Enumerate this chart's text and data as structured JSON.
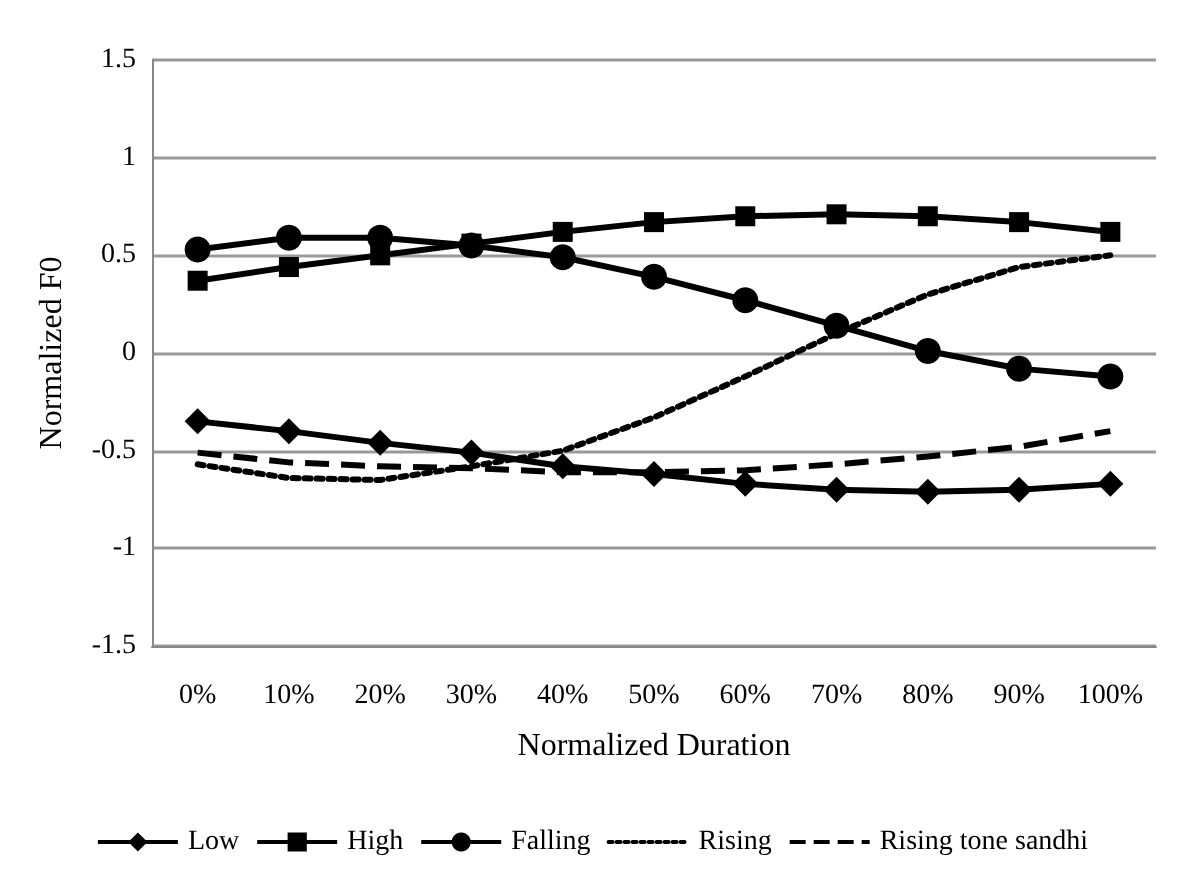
{
  "chart_data": {
    "type": "line",
    "xlabel": "Normalized Duration",
    "ylabel": "Normalized F0",
    "categories": [
      "0%",
      "10%",
      "20%",
      "30%",
      "40%",
      "50%",
      "60%",
      "70%",
      "80%",
      "90%",
      "100%"
    ],
    "ylim": [
      -1.5,
      1.5
    ],
    "yticks": [
      -1.5,
      -1,
      -0.5,
      0,
      0.5,
      1,
      1.5
    ],
    "grid": "y",
    "legend": "bottom",
    "series": [
      {
        "name": "Low",
        "color": "#000000",
        "marker": "diamond",
        "line_style": "solid",
        "values": [
          -0.35,
          -0.4,
          -0.46,
          -0.51,
          -0.58,
          -0.62,
          -0.67,
          -0.7,
          -0.71,
          -0.7,
          -0.67
        ]
      },
      {
        "name": "High",
        "color": "#000000",
        "marker": "square",
        "line_style": "solid",
        "values": [
          0.37,
          0.44,
          0.5,
          0.56,
          0.62,
          0.67,
          0.7,
          0.71,
          0.7,
          0.67,
          0.62
        ]
      },
      {
        "name": "Falling",
        "color": "#000000",
        "marker": "circle",
        "line_style": "solid",
        "values": [
          0.53,
          0.59,
          0.59,
          0.55,
          0.49,
          0.39,
          0.27,
          0.14,
          0.01,
          -0.08,
          -0.12
        ]
      },
      {
        "name": "Rising",
        "color": "#000000",
        "marker": "none",
        "line_style": "dotted",
        "values": [
          -0.57,
          -0.64,
          -0.65,
          -0.58,
          -0.5,
          -0.33,
          -0.12,
          0.1,
          0.3,
          0.44,
          0.5
        ]
      },
      {
        "name": "Rising tone sandhi",
        "color": "#000000",
        "marker": "none",
        "line_style": "dashed",
        "values": [
          -0.51,
          -0.56,
          -0.58,
          -0.59,
          -0.61,
          -0.61,
          -0.6,
          -0.57,
          -0.53,
          -0.48,
          -0.4
        ]
      }
    ]
  }
}
